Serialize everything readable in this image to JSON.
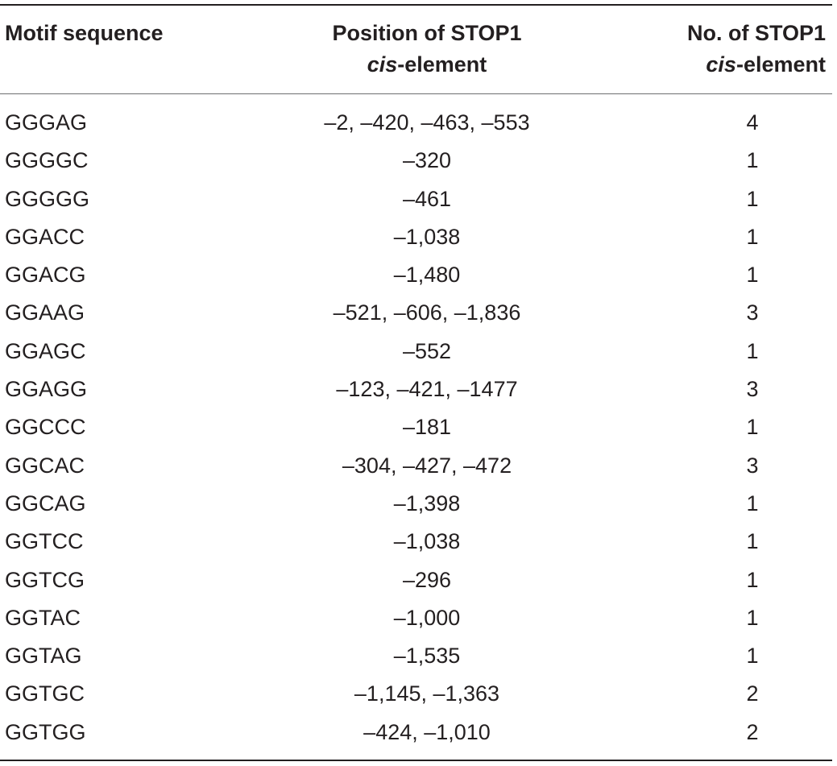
{
  "header": {
    "motif": "Motif sequence",
    "position_line1": "Position of STOP1",
    "position_line2_italic": "cis",
    "position_line2_rest": "-element",
    "number_line1": "No. of STOP1",
    "number_line2_italic": "cis",
    "number_line2_rest": "-element"
  },
  "rows": [
    {
      "motif": "GGGAG",
      "position": "–2, –420, –463, –553",
      "number": "4"
    },
    {
      "motif": "GGGGC",
      "position": "–320",
      "number": "1"
    },
    {
      "motif": "GGGGG",
      "position": "–461",
      "number": "1"
    },
    {
      "motif": "GGACC",
      "position": "–1,038",
      "number": "1"
    },
    {
      "motif": "GGACG",
      "position": "–1,480",
      "number": "1"
    },
    {
      "motif": "GGAAG",
      "position": "–521, –606, –1,836",
      "number": "3"
    },
    {
      "motif": "GGAGC",
      "position": "–552",
      "number": "1"
    },
    {
      "motif": "GGAGG",
      "position": "–123, –421, –1477",
      "number": "3"
    },
    {
      "motif": "GGCCC",
      "position": "–181",
      "number": "1"
    },
    {
      "motif": "GGCAC",
      "position": "–304, –427, –472",
      "number": "3"
    },
    {
      "motif": "GGCAG",
      "position": "–1,398",
      "number": "1"
    },
    {
      "motif": "GGTCC",
      "position": "–1,038",
      "number": "1"
    },
    {
      "motif": "GGTCG",
      "position": "–296",
      "number": "1"
    },
    {
      "motif": "GGTAC",
      "position": "–1,000",
      "number": "1"
    },
    {
      "motif": "GGTAG",
      "position": "–1,535",
      "number": "1"
    },
    {
      "motif": "GGTGC",
      "position": "–1,145, –1,363",
      "number": "2"
    },
    {
      "motif": "GGTGG",
      "position": "–424, –1,010",
      "number": "2"
    }
  ]
}
